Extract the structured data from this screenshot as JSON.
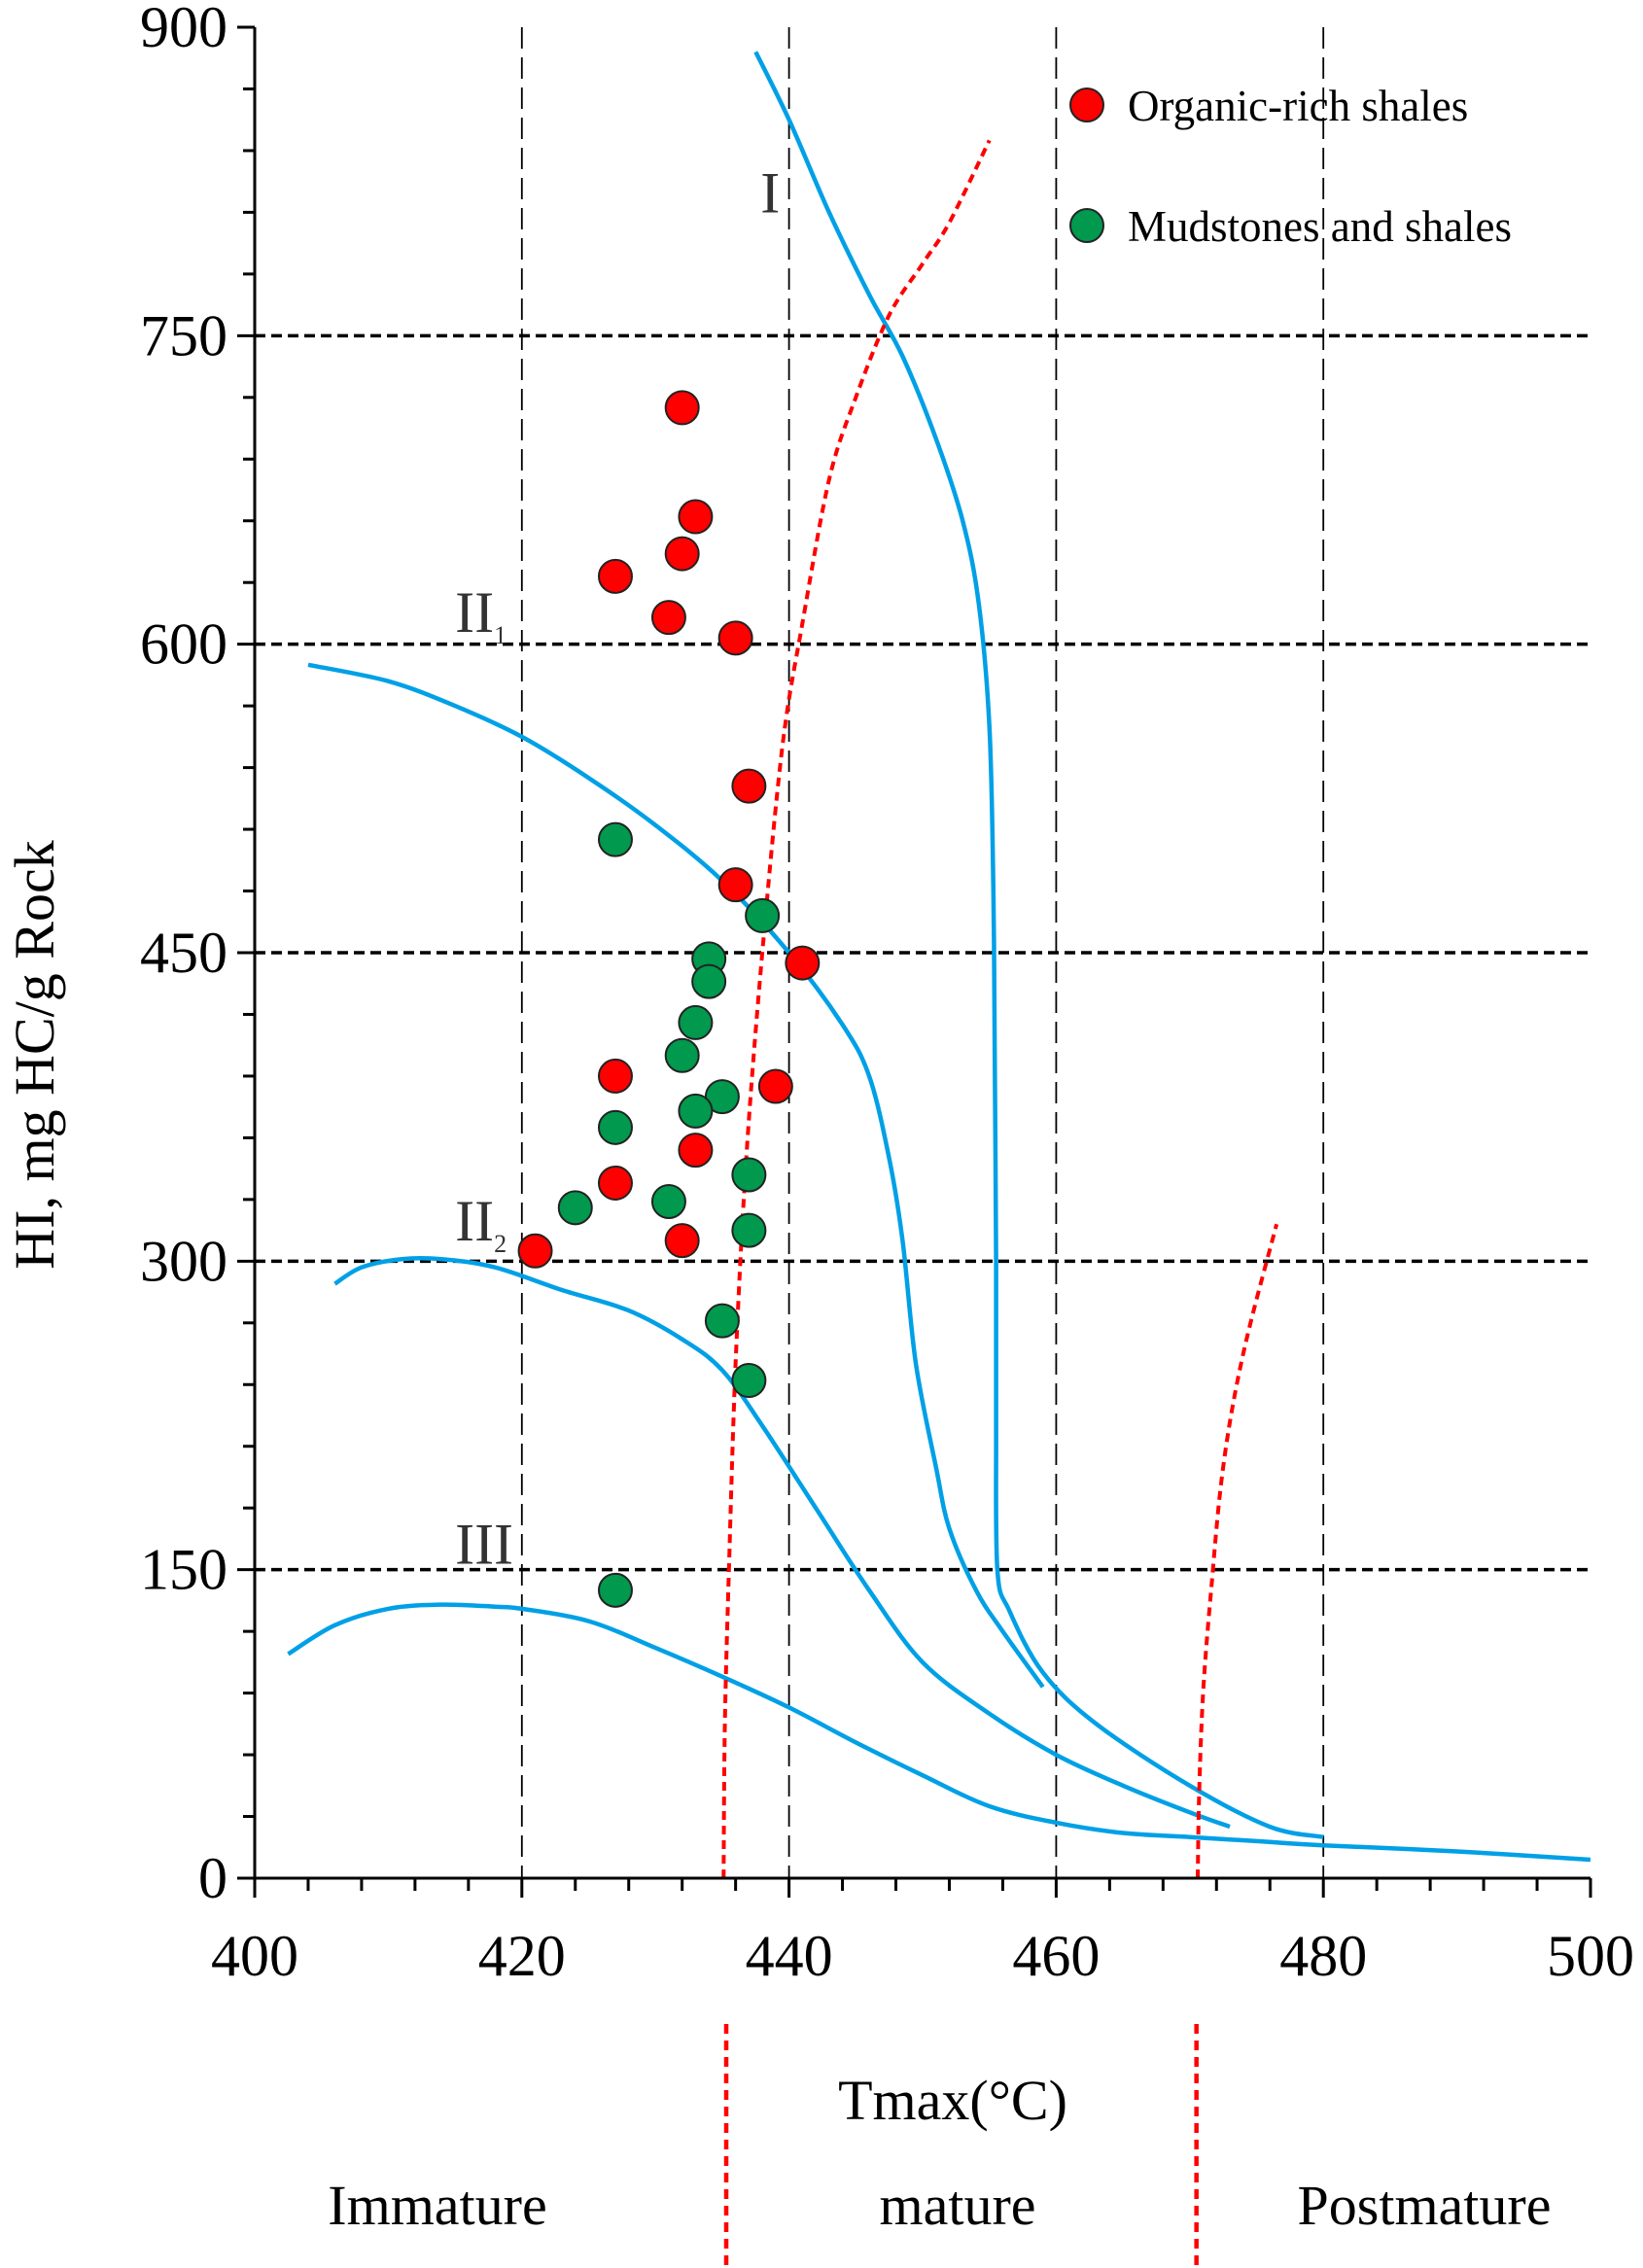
{
  "chart_data": {
    "type": "scatter",
    "title": "",
    "xlabel": "Tmax(°C)",
    "ylabel": "HI, mg HC/g Rock",
    "xlim": [
      400,
      500
    ],
    "ylim": [
      0,
      900
    ],
    "xticks": [
      400,
      420,
      440,
      460,
      480,
      500
    ],
    "yticks": [
      0,
      150,
      300,
      450,
      600,
      750,
      900
    ],
    "xtick_labels": [
      "400",
      "420",
      "440",
      "460",
      "480",
      "500"
    ],
    "ytick_labels": [
      "0",
      "150",
      "300",
      "450",
      "600",
      "750",
      "900"
    ],
    "grid": {
      "vertical_dashed": [
        420,
        440,
        460,
        480
      ],
      "horizontal_dashed": [
        150,
        300,
        450,
        600,
        750
      ]
    },
    "legend": {
      "position": "top-right",
      "entries": [
        {
          "name": "Organic-rich shales",
          "color": "#ff0000"
        },
        {
          "name": "Mudstones and shales",
          "color": "#00994d"
        }
      ]
    },
    "series": [
      {
        "name": "Organic-rich shales",
        "color": "#ff0000",
        "points": [
          [
            432,
            715
          ],
          [
            433,
            662
          ],
          [
            432,
            644
          ],
          [
            427,
            633
          ],
          [
            431,
            613
          ],
          [
            436,
            603
          ],
          [
            437,
            531
          ],
          [
            436,
            483
          ],
          [
            441,
            445
          ],
          [
            439,
            385
          ],
          [
            427,
            390
          ],
          [
            433,
            354
          ],
          [
            427,
            338
          ],
          [
            432,
            310
          ],
          [
            421,
            305
          ]
        ]
      },
      {
        "name": "Mudstones and shales",
        "color": "#00994d",
        "points": [
          [
            427,
            505
          ],
          [
            438,
            468
          ],
          [
            434,
            447
          ],
          [
            434,
            436
          ],
          [
            433,
            416
          ],
          [
            432,
            400
          ],
          [
            435,
            380
          ],
          [
            433,
            373
          ],
          [
            427,
            365
          ],
          [
            437,
            342
          ],
          [
            424,
            326
          ],
          [
            431,
            329
          ],
          [
            437,
            315
          ],
          [
            435,
            271
          ],
          [
            437,
            242
          ],
          [
            427,
            140
          ]
        ]
      }
    ],
    "type_curves": [
      {
        "label": "I",
        "subscript": "",
        "label_at": [
          437.5,
          810
        ],
        "color": "#00a0e6",
        "points": [
          [
            437.5,
            888
          ],
          [
            440,
            855
          ],
          [
            443,
            810
          ],
          [
            446,
            770
          ],
          [
            448.5,
            740
          ],
          [
            451,
            700
          ],
          [
            453,
            660
          ],
          [
            454.2,
            620
          ],
          [
            455,
            560
          ],
          [
            455.3,
            480
          ],
          [
            455.4,
            400
          ],
          [
            455.5,
            300
          ],
          [
            455.5,
            220
          ],
          [
            455.6,
            150
          ],
          [
            456.5,
            130
          ],
          [
            459,
            100
          ],
          [
            463,
            75
          ],
          [
            470,
            45
          ],
          [
            476,
            25
          ],
          [
            480,
            20
          ]
        ]
      },
      {
        "label": "II",
        "subscript": "1",
        "label_at": [
          415,
          606
        ],
        "color": "#00a0e6",
        "points": [
          [
            404,
            590
          ],
          [
            410,
            582
          ],
          [
            415,
            570
          ],
          [
            420,
            555
          ],
          [
            425,
            535
          ],
          [
            430,
            512
          ],
          [
            435,
            485
          ],
          [
            440,
            450
          ],
          [
            444,
            415
          ],
          [
            446,
            390
          ],
          [
            447.5,
            350
          ],
          [
            448.5,
            310
          ],
          [
            449.5,
            250
          ],
          [
            451,
            200
          ],
          [
            452,
            170
          ],
          [
            454,
            140
          ],
          [
            456,
            120
          ],
          [
            459,
            93
          ]
        ]
      },
      {
        "label": "II",
        "subscript": "2",
        "label_at": [
          415,
          310
        ],
        "color": "#00a0e6",
        "points": [
          [
            406,
            289
          ],
          [
            408,
            297
          ],
          [
            411,
            301
          ],
          [
            414,
            301
          ],
          [
            418,
            297
          ],
          [
            423,
            286
          ],
          [
            428,
            276
          ],
          [
            432,
            262
          ],
          [
            435,
            247
          ],
          [
            438,
            220
          ],
          [
            442,
            180
          ],
          [
            446,
            140
          ],
          [
            450,
            105
          ],
          [
            455,
            80
          ],
          [
            460,
            60
          ],
          [
            465,
            45
          ],
          [
            470,
            32
          ],
          [
            473,
            25
          ]
        ]
      },
      {
        "label": "III",
        "subscript": "",
        "label_at": [
          415,
          153
        ],
        "color": "#00a0e6",
        "points": [
          [
            402.5,
            109
          ],
          [
            406,
            123
          ],
          [
            410,
            131
          ],
          [
            414,
            133
          ],
          [
            418,
            132
          ],
          [
            420,
            131
          ],
          [
            425,
            125
          ],
          [
            430,
            112
          ],
          [
            435,
            98
          ],
          [
            440,
            83
          ],
          [
            445,
            66
          ],
          [
            450,
            50
          ],
          [
            455,
            35
          ],
          [
            460,
            27
          ],
          [
            465,
            22
          ],
          [
            470,
            20
          ],
          [
            475,
            18
          ],
          [
            480,
            16
          ],
          [
            490,
            13
          ],
          [
            500,
            9
          ]
        ]
      }
    ],
    "maturity_boundaries": [
      {
        "color": "#ff0000",
        "points": [
          [
            435.1,
            0
          ],
          [
            435.2,
            75
          ],
          [
            435.5,
            150
          ],
          [
            436,
            250
          ],
          [
            436.8,
            350
          ],
          [
            438,
            450
          ],
          [
            439.5,
            550
          ],
          [
            441,
            610
          ],
          [
            443,
            680
          ],
          [
            445,
            720
          ],
          [
            447.5,
            760
          ],
          [
            450,
            785
          ],
          [
            452,
            805
          ],
          [
            455,
            845
          ]
        ]
      },
      {
        "color": "#ff0000",
        "points": [
          [
            470.6,
            0
          ],
          [
            470.7,
            40
          ],
          [
            471,
            90
          ],
          [
            471.6,
            140
          ],
          [
            472.5,
            200
          ],
          [
            474,
            255
          ],
          [
            476.5,
            318
          ]
        ]
      }
    ],
    "stage_dividers": [
      435.3,
      470.5
    ],
    "maturity_zones": [
      "Immature",
      "mature",
      "Postmature"
    ]
  }
}
